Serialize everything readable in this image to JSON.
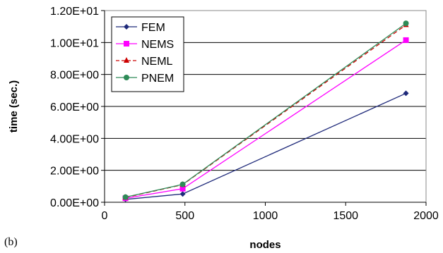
{
  "panel_label": "(b)",
  "chart_data": {
    "type": "line",
    "title": "",
    "xlabel": "nodes",
    "ylabel": "time (sec.)",
    "xlim": [
      0,
      2000
    ],
    "ylim": [
      0,
      12
    ],
    "x_ticks": [
      0,
      500,
      1000,
      1500,
      2000
    ],
    "x_tick_labels": [
      "0",
      "500",
      "1000",
      "1500",
      "2000"
    ],
    "y_ticks": [
      0,
      2,
      4,
      6,
      8,
      10,
      12
    ],
    "y_tick_labels": [
      "0.00E+00",
      "2.00E+00",
      "4.00E+00",
      "6.00E+00",
      "8.00E+00",
      "1.00E+01",
      "1.20E+01"
    ],
    "grid": "horizontal",
    "legend_position": "top-left",
    "x": [
      130,
      486,
      1875
    ],
    "series": [
      {
        "name": "FEM",
        "color": "#1f2a7a",
        "marker": "diamond",
        "dash": "solid",
        "values": [
          0.18,
          0.52,
          6.82
        ]
      },
      {
        "name": "NEMS",
        "color": "#ff00ff",
        "marker": "square",
        "dash": "solid",
        "values": [
          0.25,
          0.85,
          10.15
        ]
      },
      {
        "name": "NEML",
        "color": "#cc0000",
        "marker": "triangle",
        "dash": "dashed",
        "values": [
          0.3,
          1.1,
          11.1
        ]
      },
      {
        "name": "PNEM",
        "color": "#2e8b57",
        "marker": "circle",
        "dash": "solid",
        "values": [
          0.32,
          1.12,
          11.2
        ]
      }
    ]
  }
}
